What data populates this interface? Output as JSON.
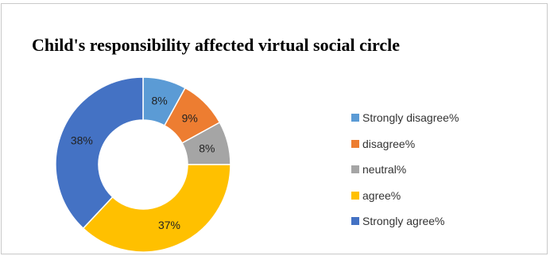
{
  "chart_data": {
    "type": "pie",
    "title": "Child's responsibility affected virtual social circle",
    "donut": true,
    "legend_position": "right",
    "categories": [
      "Strongly disagree%",
      "disagree%",
      "neutral%",
      "agree%",
      "Strongly agree%"
    ],
    "values": [
      8,
      9,
      8,
      37,
      38
    ],
    "labels": [
      "8%",
      "9%",
      "8%",
      "37%",
      "38%"
    ],
    "colors": [
      "#5b9bd5",
      "#ed7d31",
      "#a5a5a5",
      "#ffc000",
      "#4472c4"
    ]
  }
}
